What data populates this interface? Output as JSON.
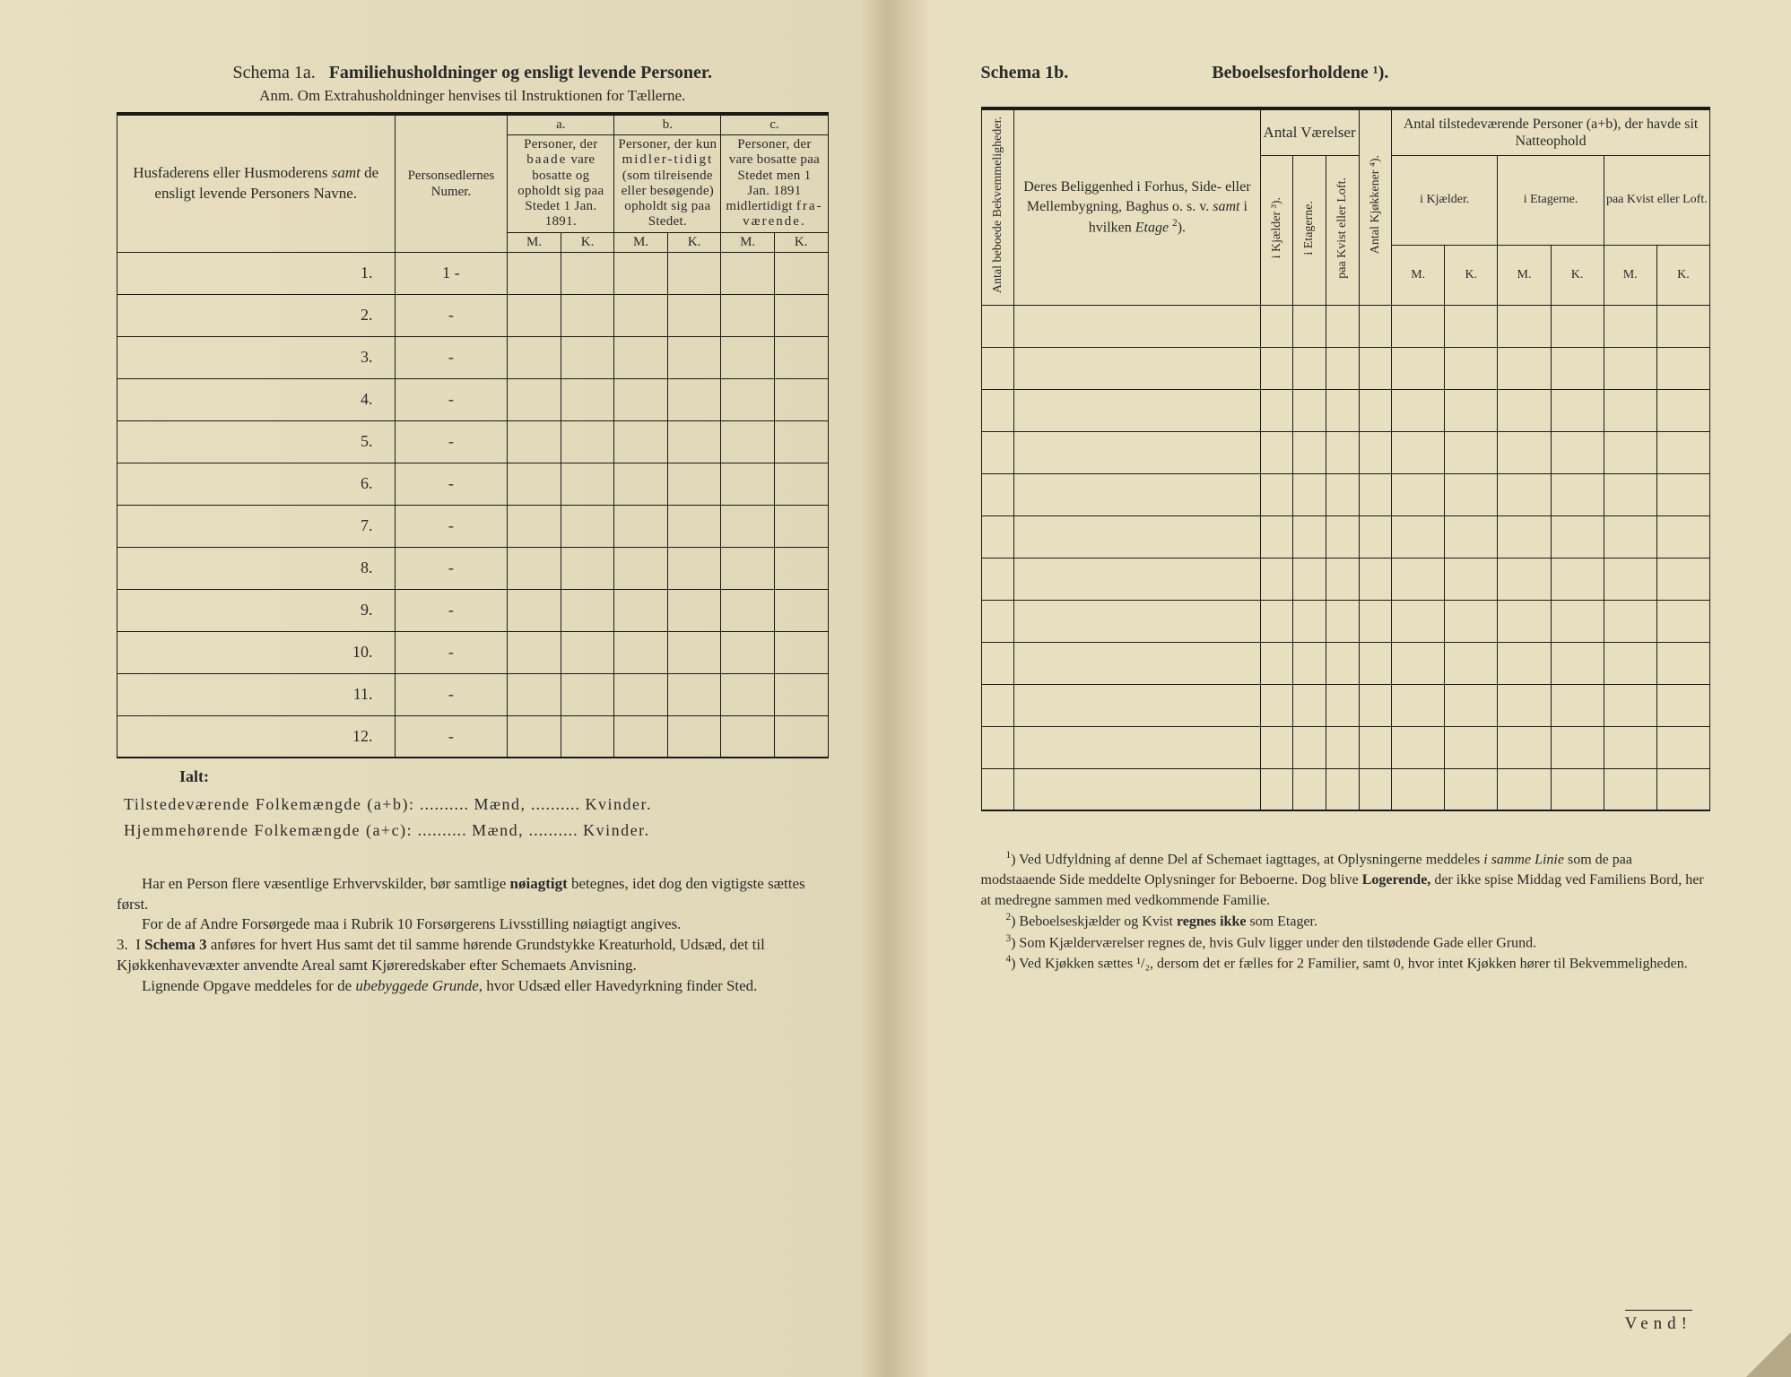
{
  "left": {
    "schema_label": "Schema 1a.",
    "schema_title": "Familiehusholdninger og ensligt levende Personer.",
    "anm": "Anm. Om Extrahusholdninger henvises til Instruktionen for Tællerne.",
    "columns": {
      "names": "Husfaderens eller Husmoderens samt de ensligt levende Personers Navne.",
      "num": "Personsedlernes Numer.",
      "a": "a.",
      "a_desc": "Personer, der baade vare bosatte og opholdt sig paa Stedet 1 Jan. 1891.",
      "b": "b.",
      "b_desc": "Personer, der kun midlertidigt (som tilreisende eller besøgende) opholdt sig paa Stedet.",
      "c": "c.",
      "c_desc": "Personer, der vare bosatte paa Stedet men 1 Jan. 1891 midlertidigt fraværende.",
      "M": "M.",
      "K": "K."
    },
    "rows": [
      "1.",
      "2.",
      "3.",
      "4.",
      "5.",
      "6.",
      "7.",
      "8.",
      "9.",
      "10.",
      "11.",
      "12."
    ],
    "pn_1": "1 -",
    "dash": "-",
    "ialt": "Ialt:",
    "t1_a": "Tilstedeværende Folkemængde (a+b):",
    "t1_m": "Mænd,",
    "t1_k": "Kvinder.",
    "t2_a": "Hjemmehørende Folkemængde (a+c):",
    "t2_m": "Mænd,",
    "t2_k": "Kvinder.",
    "body_p1": "Har en Person flere væsentlige Erhvervskilder, bør samtlige nøiagtigt betegnes, idet dog den vigtigste sættes først.",
    "body_p2": "For de af Andre Forsørgede maa i Rubrik 10 Forsørgerens Livsstilling nøiagtigt angives.",
    "body_p3_lead": "3.",
    "body_p3": "I Schema 3 anføres for hvert Hus samt det til samme hørende Grundstykke Kreaturhold, Udsæd, det til Kjøkkenhavevæxter anvendte Areal samt Kjøreredskaber efter Schemaets Anvisning.",
    "body_p4": "Lignende Opgave meddeles for de ubebyggede Grunde, hvor Udsæd eller Havedyrkning finder Sted."
  },
  "right": {
    "schema_label": "Schema 1b.",
    "schema_title": "Beboelsesforholdene ¹).",
    "columns": {
      "abb": "Antal beboede Bekvemmeligheder.",
      "loc": "Deres Beliggenhed i Forhus, Side- eller Mellembygning, Baghus o. s. v. samt i hvilken Etage ²).",
      "varelser": "Antal Værelser",
      "ikj": "i Kjælder ³).",
      "iet": "i Etagerne.",
      "loft": "paa Kvist eller Loft.",
      "kjok": "Antal Kjøkkener ⁴).",
      "natte": "Antal tilstedeværende Personer (a+b), der havde sit Natteophold",
      "n_kj": "i Kjælder.",
      "n_et": "i Etagerne.",
      "n_loft": "paa Kvist eller Loft.",
      "M": "M.",
      "K": "K."
    },
    "fn1": "¹) Ved Udfyldning af denne Del af Schemaet iagttages, at Oplysningerne meddeles i samme Linie som de paa modstaaende Side meddelte Oplysninger for Beboerne. Dog blive Logerende, der ikke spise Middag ved Familiens Bord, her at medregne sammen med vedkommende Familie.",
    "fn2": "²) Beboelseskjælder og Kvist regnes ikke som Etager.",
    "fn3": "³) Som Kjælderværelser regnes de, hvis Gulv ligger under den tilstødende Gade eller Grund.",
    "fn4": "⁴) Ved Kjøkken sættes ¹/₂, dersom det er fælles for 2 Familier, samt 0, hvor intet Kjøkken hører til Bekvemmeligheden.",
    "vend": "Vend!"
  }
}
